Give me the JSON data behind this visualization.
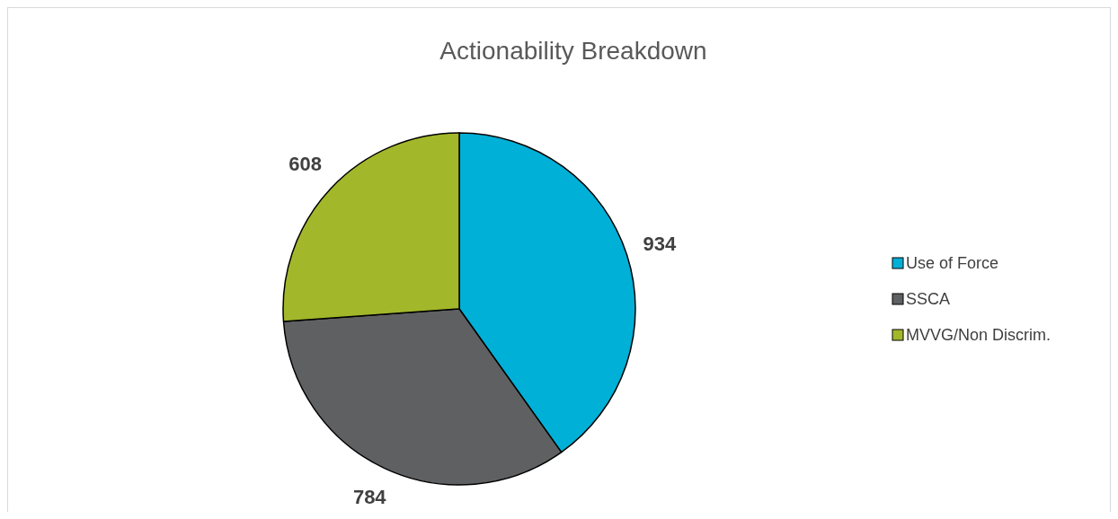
{
  "chart_data": {
    "type": "pie",
    "title": "Actionability Breakdown",
    "categories": [
      "Use of Force",
      "SSCA",
      "MVVG/Non Discrim."
    ],
    "values": [
      934,
      784,
      608
    ],
    "colors": [
      "#00b0d6",
      "#5f6062",
      "#a3b72a"
    ],
    "data_labels": true,
    "legend": "right"
  }
}
